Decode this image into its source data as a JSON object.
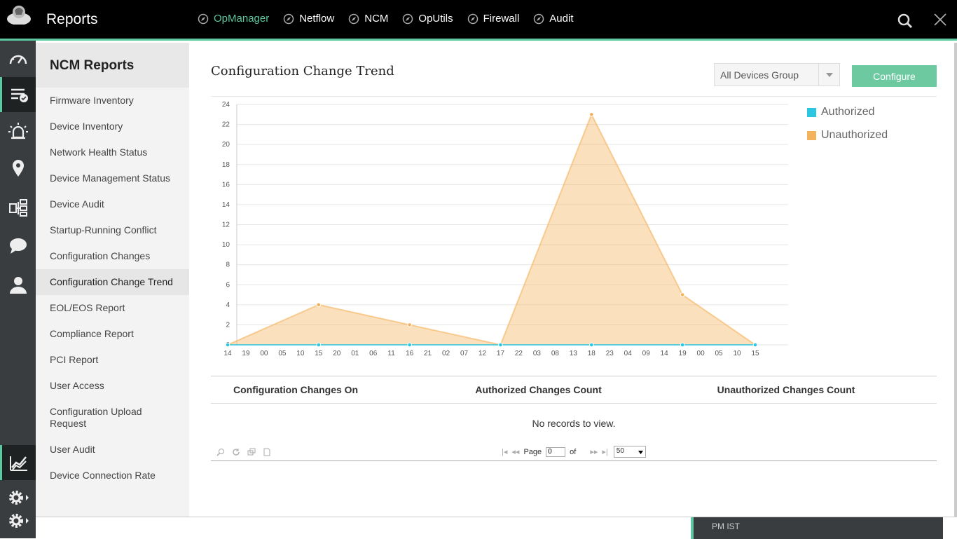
{
  "app": {
    "title": "Reports"
  },
  "topnav": [
    {
      "label": "OpManager",
      "active": true
    },
    {
      "label": "Netflow",
      "active": false
    },
    {
      "label": "NCM",
      "active": false
    },
    {
      "label": "OpUtils",
      "active": false
    },
    {
      "label": "Firewall",
      "active": false
    },
    {
      "label": "Audit",
      "active": false
    }
  ],
  "iconbar": [
    "dashboard-icon",
    "reports-list-icon",
    "alarm-icon",
    "map-pin-icon",
    "network-devices-icon",
    "chat-icon",
    "user-icon",
    "analytics-icon",
    "settings-icon"
  ],
  "sidebar": {
    "title": "NCM Reports",
    "items": [
      "Firmware Inventory",
      "Device Inventory",
      "Network Health Status",
      "Device Management Status",
      "Device Audit",
      "Startup-Running Conflict",
      "Configuration Changes",
      "Configuration Change Trend",
      "EOL/EOS Report",
      "Compliance Report",
      "PCI Report",
      "User Access",
      "Configuration Upload Request",
      "User Audit",
      "Device Connection Rate"
    ],
    "active_index": 7
  },
  "main": {
    "title": "Configuration Change Trend",
    "group_select": "All Devices Group",
    "configure_label": "Configure"
  },
  "chart_data": {
    "type": "area",
    "x": [
      "14",
      "19",
      "00",
      "05",
      "10",
      "15",
      "20",
      "01",
      "06",
      "11",
      "16",
      "21",
      "02",
      "07",
      "12",
      "17",
      "22",
      "03",
      "08",
      "13",
      "18",
      "23",
      "04",
      "09",
      "14",
      "19",
      "00",
      "05",
      "10",
      "15"
    ],
    "series": [
      {
        "name": "Authorized",
        "color": "#2bc6e0",
        "points": [
          [
            0,
            0
          ],
          [
            5,
            0
          ],
          [
            10,
            0
          ],
          [
            15,
            0
          ],
          [
            20,
            0
          ],
          [
            25,
            0
          ],
          [
            29,
            0
          ]
        ]
      },
      {
        "name": "Unauthorized",
        "color": "#f5b25c",
        "points": [
          [
            0,
            0
          ],
          [
            5,
            4
          ],
          [
            10,
            2
          ],
          [
            15,
            0
          ],
          [
            20,
            23
          ],
          [
            25,
            5
          ],
          [
            29,
            0
          ]
        ]
      }
    ],
    "yticks": [
      0,
      2,
      4,
      6,
      8,
      10,
      12,
      14,
      16,
      18,
      20,
      22,
      24
    ],
    "ylim": [
      0,
      24
    ],
    "grid": true,
    "legend": "top-right"
  },
  "table": {
    "columns": [
      "Configuration Changes On",
      "Authorized Changes Count",
      "Unauthorized Changes Count"
    ],
    "empty_text": "No records to view.",
    "pager": {
      "page_label": "Page",
      "page_value": "0",
      "of_label": "of",
      "page_size": "50"
    }
  },
  "status": {
    "timezone": "PM IST"
  }
}
